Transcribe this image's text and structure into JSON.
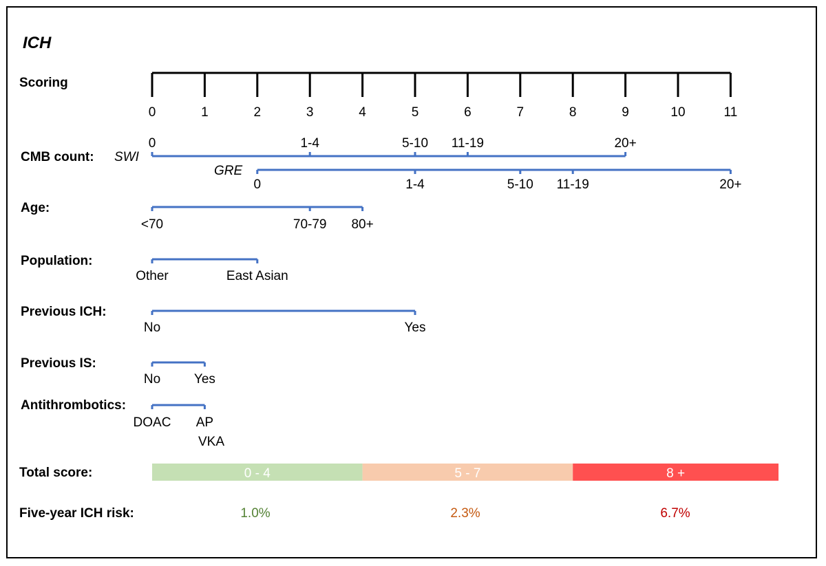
{
  "title": "ICH",
  "scoring": {
    "label": "Scoring",
    "points": [
      "0",
      "1",
      "2",
      "3",
      "4",
      "5",
      "6",
      "7",
      "8",
      "9",
      "10",
      "11"
    ]
  },
  "cmb": {
    "label": "CMB count:",
    "swi": {
      "label": "SWI",
      "ticks": [
        {
          "text": "0",
          "score": 0
        },
        {
          "text": "1-4",
          "score": 3
        },
        {
          "text": "5-10",
          "score": 5
        },
        {
          "text": "11-19",
          "score": 6
        },
        {
          "text": "20+",
          "score": 9
        }
      ]
    },
    "gre": {
      "label": "GRE",
      "ticks": [
        {
          "text": "0",
          "score": 2
        },
        {
          "text": "1-4",
          "score": 5
        },
        {
          "text": "5-10",
          "score": 7
        },
        {
          "text": "11-19",
          "score": 8
        },
        {
          "text": "20+",
          "score": 11
        }
      ]
    }
  },
  "variables": [
    {
      "id": "age",
      "label": "Age:",
      "ticks": [
        {
          "text": "<70",
          "score": 0
        },
        {
          "text": "70-79",
          "score": 3
        },
        {
          "text": "80+",
          "score": 4
        }
      ]
    },
    {
      "id": "population",
      "label": "Population:",
      "ticks": [
        {
          "text": "Other",
          "score": 0
        },
        {
          "text": "East Asian",
          "score": 2
        }
      ]
    },
    {
      "id": "previous-ich",
      "label": "Previous ICH:",
      "ticks": [
        {
          "text": "No",
          "score": 0
        },
        {
          "text": "Yes",
          "score": 5
        }
      ]
    },
    {
      "id": "previous-is",
      "label": "Previous IS:",
      "ticks": [
        {
          "text": "No",
          "score": 0
        },
        {
          "text": "Yes",
          "score": 1
        }
      ]
    },
    {
      "id": "antithrombotics",
      "label": "Antithrombotics:",
      "ticks": [
        {
          "text": "DOAC",
          "score": 0
        },
        {
          "text": "AP",
          "score": 1
        }
      ],
      "extra_text": "VKA"
    }
  ],
  "total": {
    "label": "Total score:",
    "bands": [
      {
        "text": "0 - 4",
        "from": 0,
        "to": 4,
        "color": "#c5e0b4"
      },
      {
        "text": "5 - 7",
        "from": 4,
        "to": 8,
        "color": "#f8cbad"
      },
      {
        "text": "8 +",
        "from": 8,
        "to": 12,
        "color": "#ff5050"
      }
    ]
  },
  "risk": {
    "label": "Five-year ICH risk:",
    "values": [
      {
        "text": "1.0%",
        "color": "#548235"
      },
      {
        "text": "2.3%",
        "color": "#c55a11"
      },
      {
        "text": "6.7%",
        "color": "#c00000"
      }
    ]
  },
  "colors": {
    "scale_line": "#4472c4",
    "axis": "#000000"
  }
}
